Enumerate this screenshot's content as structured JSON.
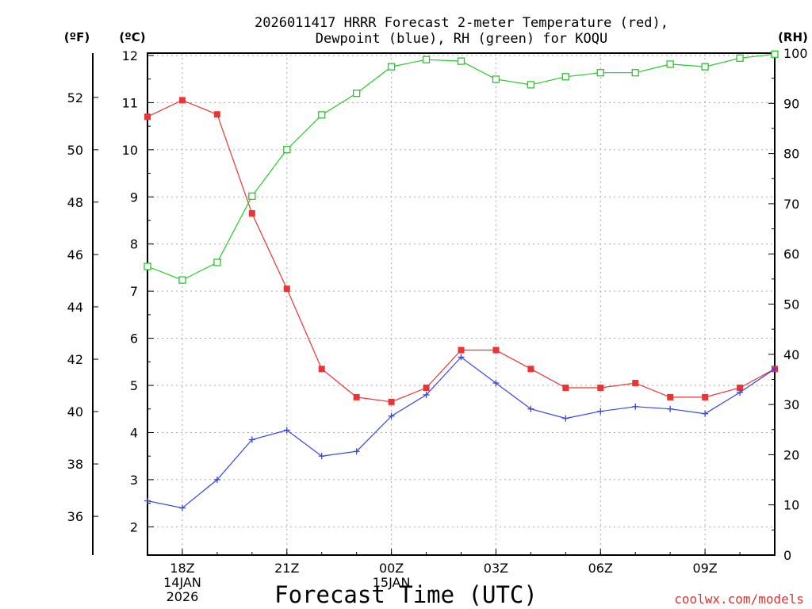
{
  "colors": {
    "temperature": "#ee3333",
    "dewpoint": "#3344ee",
    "rh": "#22cc22",
    "grid": "#aaaaaa",
    "axis": "#000000",
    "watermark": "#dd3333"
  },
  "chart_data": {
    "type": "line",
    "title_line1": "2026011417 HRRR Forecast 2-meter Temperature (red),",
    "title_line2": "Dewpoint (blue), RH (green) for KOQU",
    "xlabel": "Forecast Time (UTC)",
    "left_axis_f_label": "(ºF)",
    "left_axis_c_label": "(ºC)",
    "right_axis_label": "(RH)",
    "watermark": "coolwx.com/models",
    "x_hours": [
      17,
      18,
      19,
      20,
      21,
      22,
      23,
      24,
      25,
      26,
      27,
      28,
      29,
      30,
      31,
      32,
      33,
      34,
      35
    ],
    "x_ticks": [
      {
        "hour": 18,
        "lines": [
          "18Z",
          "14JAN",
          "2026"
        ]
      },
      {
        "hour": 21,
        "lines": [
          "21Z"
        ]
      },
      {
        "hour": 24,
        "lines": [
          "00Z",
          "15JAN"
        ]
      },
      {
        "hour": 27,
        "lines": [
          "03Z"
        ]
      },
      {
        "hour": 30,
        "lines": [
          "06Z"
        ]
      },
      {
        "hour": 33,
        "lines": [
          "09Z"
        ]
      }
    ],
    "celsius_ylim": [
      1.4,
      12.05
    ],
    "celsius_ticks": [
      "2",
      "3",
      "4",
      "5",
      "6",
      "7",
      "8",
      "9",
      "10",
      "11",
      "12"
    ],
    "fahrenheit_ticks": [
      "36",
      "38",
      "40",
      "42",
      "44",
      "46",
      "48",
      "50",
      "52"
    ],
    "rh_ylim": [
      0,
      100
    ],
    "rh_ticks": [
      "0",
      "10",
      "20",
      "30",
      "40",
      "50",
      "60",
      "70",
      "80",
      "90",
      "100"
    ],
    "series": [
      {
        "name": "Temperature",
        "unit": "C",
        "color_key": "temperature",
        "marker": "filled-square",
        "values": [
          10.7,
          11.05,
          10.75,
          8.65,
          7.05,
          5.35,
          4.75,
          4.65,
          4.95,
          5.75,
          5.75,
          5.35,
          4.95,
          4.95,
          5.05,
          4.75,
          4.75,
          4.95,
          5.35
        ]
      },
      {
        "name": "Dewpoint",
        "unit": "C",
        "color_key": "dewpoint",
        "marker": "plus",
        "values": [
          2.55,
          2.4,
          3.0,
          3.85,
          4.05,
          3.5,
          3.6,
          4.35,
          4.8,
          5.6,
          5.05,
          4.5,
          4.3,
          4.45,
          4.55,
          4.5,
          4.4,
          4.85,
          5.35
        ]
      },
      {
        "name": "RH",
        "unit": "%",
        "color_key": "rh",
        "marker": "open-square",
        "values": [
          57.5,
          54.8,
          58.3,
          71.5,
          80.8,
          87.7,
          92.0,
          97.3,
          98.7,
          98.4,
          94.8,
          93.7,
          95.3,
          96.1,
          96.1,
          97.8,
          97.3,
          99.0,
          99.8
        ]
      }
    ]
  }
}
